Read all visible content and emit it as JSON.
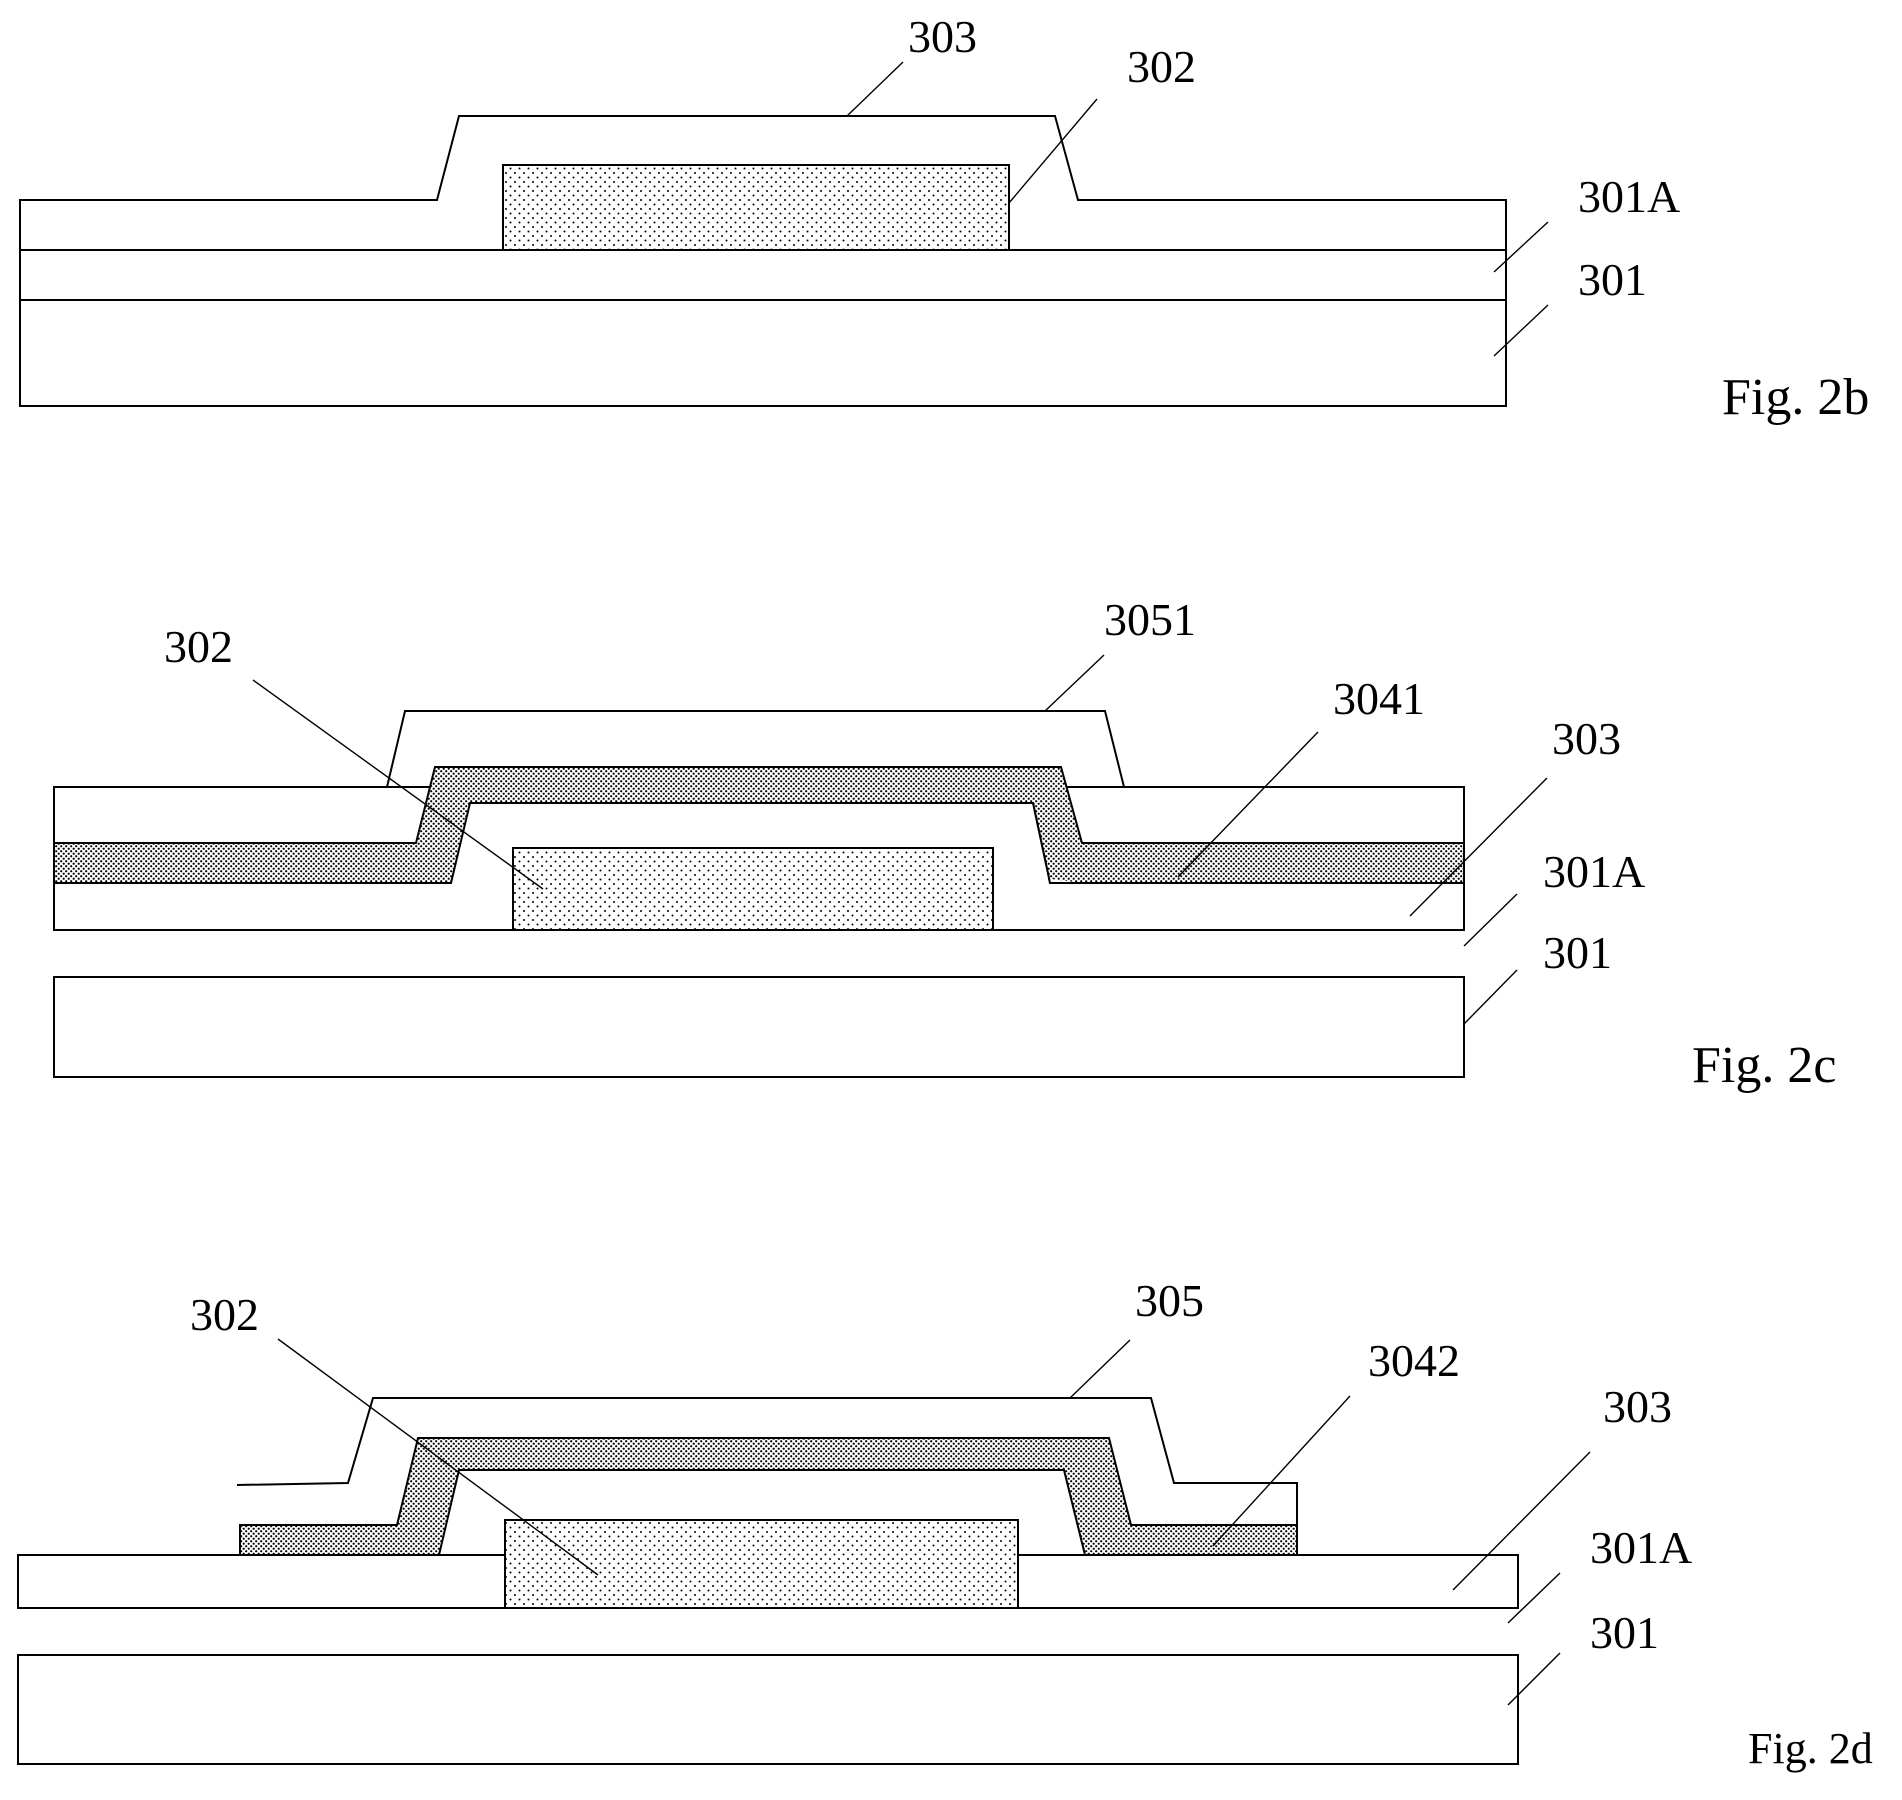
{
  "figures": [
    {
      "id": "fig-2b",
      "caption": "Fig. 2b",
      "labels": {
        "l303": "303",
        "l302": "302",
        "l301A": "301A",
        "l301": "301"
      }
    },
    {
      "id": "fig-2c",
      "caption": "Fig. 2c",
      "labels": {
        "l302": "302",
        "l3051": "3051",
        "l3041": "3041",
        "l303": "303",
        "l301A": "301A",
        "l301": "301"
      }
    },
    {
      "id": "fig-2d",
      "caption": "Fig. 2d",
      "labels": {
        "l302": "302",
        "l305": "305",
        "l3042": "3042",
        "l303": "303",
        "l301A": "301A",
        "l301": "301"
      }
    }
  ],
  "colors": {
    "line": "#000000",
    "background": "#ffffff",
    "hatch_fine": "#000000",
    "hatch_dense": "#000000"
  }
}
